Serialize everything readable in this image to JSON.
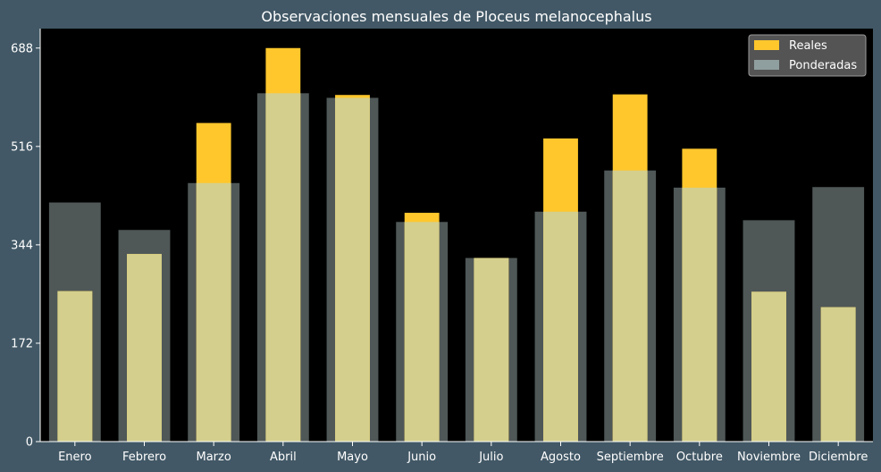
{
  "chart_data": {
    "type": "bar",
    "title": "Observaciones mensuales de Ploceus melanocephalus",
    "xlabel": "",
    "ylabel": "",
    "categories": [
      "Enero",
      "Febrero",
      "Marzo",
      "Abril",
      "Mayo",
      "Junio",
      "Julio",
      "Agosto",
      "Septiembre",
      "Octubre",
      "Noviembre",
      "Diciembre"
    ],
    "series": [
      {
        "name": "Reales",
        "color": "#ffc72c",
        "values": [
          263,
          328,
          557,
          688,
          606,
          400,
          321,
          530,
          607,
          512,
          262,
          235
        ]
      },
      {
        "name": "Ponderadas",
        "color": "#8f9e9e",
        "values": [
          418,
          370,
          452,
          609,
          601,
          384,
          321,
          402,
          474,
          444,
          387,
          445
        ]
      }
    ],
    "yticks": [
      0,
      172,
      344,
      516,
      688
    ],
    "ylim": [
      0,
      722
    ],
    "legend": "top-right",
    "grid": false,
    "colors": {
      "background": "#425866",
      "plot_area": "#000000",
      "overlap": "#d4cf8c"
    }
  }
}
